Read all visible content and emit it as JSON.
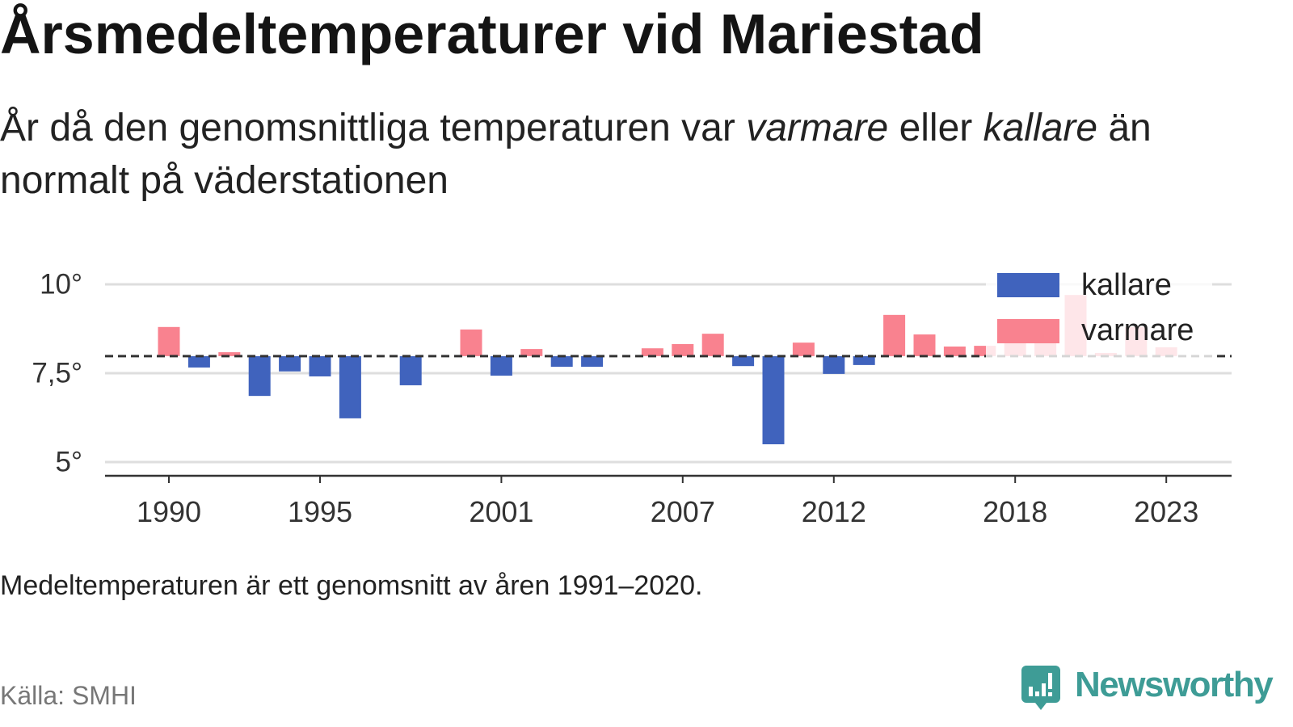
{
  "chart_data": {
    "type": "bar",
    "title": "Årsmedeltemperaturer vid Mariestad",
    "subtitle": [
      "År då den genomsnittliga temperaturen var ",
      "varmare",
      " eller ",
      "kallare",
      " än normalt på väderstationen"
    ],
    "categories": [
      1990,
      1991,
      1992,
      1993,
      1994,
      1995,
      1996,
      1997,
      1998,
      1999,
      2000,
      2001,
      2002,
      2003,
      2004,
      2005,
      2006,
      2007,
      2008,
      2009,
      2010,
      2011,
      2012,
      2013,
      2014,
      2015,
      2016,
      2017,
      2018,
      2019,
      2020,
      2021,
      2022,
      2023
    ],
    "values": [
      8.8,
      7.66,
      8.09,
      6.86,
      7.55,
      7.41,
      6.23,
      null,
      7.16,
      null,
      8.73,
      7.43,
      8.18,
      7.68,
      7.68,
      null,
      8.2,
      8.32,
      8.61,
      7.7,
      5.5,
      8.36,
      7.48,
      7.73,
      9.14,
      8.59,
      8.25,
      8.27,
      8.85,
      8.65,
      9.7,
      8.07,
      8.8,
      8.23
    ],
    "normal": 7.98,
    "ylim": [
      4.6,
      10.5
    ],
    "yticks": [
      10,
      7.5,
      5
    ],
    "ytick_labels": [
      "10°",
      "7,5°",
      "5°"
    ],
    "xticks": [
      1990,
      1995,
      2001,
      2007,
      2012,
      2018,
      2023
    ],
    "grid": true,
    "legend_position": "top-right",
    "legend": [
      {
        "name": "kallare",
        "color": "#4063bd"
      },
      {
        "name": "varmare",
        "color": "#f9828f"
      }
    ]
  },
  "footer": {
    "note": "Medeltemperaturen är ett genomsnitt av åren 1991–2020.",
    "source": "Källa: SMHI"
  },
  "logo": {
    "text": "Newsworthy",
    "icon": "newsworthy-bar-bubble-icon",
    "color": "#3e9c96"
  }
}
